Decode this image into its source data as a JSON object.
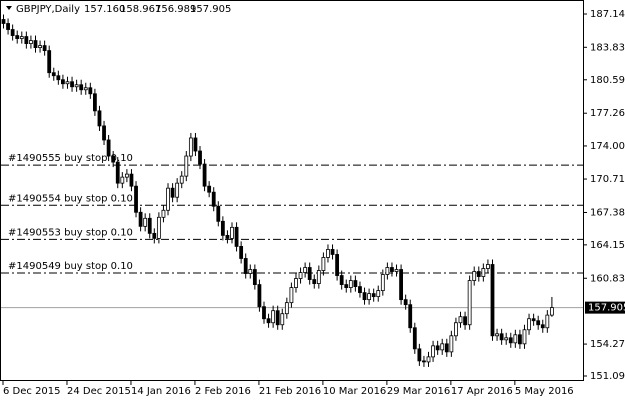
{
  "chart_data": {
    "type": "candlestick",
    "symbol": "GBPJPY,Daily",
    "info_labels": [
      "157.160",
      "158.967",
      "156.989",
      "157.905"
    ],
    "ylim": [
      150.2,
      188.54
    ],
    "yticks": [
      187.145,
      {
        "value": 183.83,
        "label": "183.830"
      },
      180.595,
      177.265,
      174.005,
      {
        "value": 170.71,
        "label": "170.710"
      },
      {
        "value": 167.38,
        "label": "167.380"
      },
      164.155,
      {
        "value": 160.83,
        "label": "160.830"
      },
      154.275,
      151.095
    ],
    "current_price": 157.905,
    "orders": [
      {
        "label": "#1490555 buy stop 0.10",
        "price": 172.1
      },
      {
        "label": "#1490554 buy stop 0.10",
        "price": 168.1
      },
      {
        "label": "#1490553 buy stop 0.10",
        "price": 164.7
      },
      {
        "label": "#1490549 buy stop 0.10",
        "price": 161.35
      }
    ],
    "categories": [
      "6 Dec 2015",
      null,
      null,
      null,
      null,
      null,
      null,
      null,
      null,
      null,
      null,
      null,
      null,
      null,
      "24 Dec 2015",
      null,
      null,
      null,
      null,
      null,
      null,
      null,
      null,
      null,
      null,
      null,
      null,
      null,
      "14 Jan 2016",
      null,
      null,
      null,
      null,
      null,
      null,
      null,
      null,
      null,
      null,
      null,
      null,
      null,
      "2 Feb 2016",
      null,
      null,
      null,
      null,
      null,
      null,
      null,
      null,
      null,
      null,
      null,
      null,
      null,
      "21 Feb 2016",
      null,
      null,
      null,
      null,
      null,
      null,
      null,
      null,
      null,
      null,
      null,
      null,
      null,
      "10 Mar 2016",
      null,
      null,
      null,
      null,
      null,
      null,
      null,
      null,
      null,
      null,
      null,
      null,
      null,
      "29 Mar 2016",
      null,
      null,
      null,
      null,
      null,
      null,
      null,
      null,
      null,
      null,
      null,
      null,
      null,
      "17 Apr 2016",
      null,
      null,
      null,
      null,
      null,
      null,
      null,
      null,
      null,
      null,
      null,
      null,
      null,
      "5 May 2016",
      null,
      null,
      null,
      null,
      null,
      null,
      null,
      null
    ],
    "ohlc": [
      [
        186.6,
        187.1,
        185.7,
        186.2
      ],
      [
        186.2,
        186.7,
        185.1,
        185.6
      ],
      [
        185.6,
        186.1,
        184.5,
        185.0
      ],
      [
        185.0,
        185.5,
        184.2,
        184.7
      ],
      [
        184.7,
        185.4,
        184.2,
        184.9
      ],
      [
        184.9,
        185.4,
        183.7,
        184.2
      ],
      [
        184.2,
        185.0,
        183.7,
        184.5
      ],
      [
        184.5,
        185.0,
        183.3,
        183.8
      ],
      [
        183.8,
        184.5,
        183.3,
        184.0
      ],
      [
        184.0,
        184.5,
        183.0,
        183.5
      ],
      [
        183.5,
        184.0,
        180.8,
        181.3
      ],
      [
        181.3,
        181.8,
        180.5,
        181.0
      ],
      [
        181.0,
        181.5,
        180.1,
        180.6
      ],
      [
        180.6,
        181.1,
        179.7,
        180.2
      ],
      [
        180.2,
        180.9,
        179.7,
        180.4
      ],
      [
        180.4,
        180.9,
        179.4,
        179.9
      ],
      [
        179.9,
        180.6,
        179.4,
        180.1
      ],
      [
        180.1,
        180.6,
        179.1,
        179.6
      ],
      [
        179.6,
        180.3,
        179.1,
        179.8
      ],
      [
        179.8,
        180.3,
        178.7,
        179.2
      ],
      [
        179.2,
        179.7,
        177.0,
        177.5
      ],
      [
        177.5,
        178.0,
        175.5,
        176.0
      ],
      [
        176.0,
        176.5,
        174.1,
        174.6
      ],
      [
        174.6,
        175.1,
        172.5,
        173.0
      ],
      [
        173.0,
        173.5,
        171.9,
        172.4
      ],
      [
        172.4,
        172.9,
        169.8,
        170.3
      ],
      [
        170.3,
        171.4,
        169.8,
        170.9
      ],
      [
        170.9,
        171.7,
        170.4,
        171.2
      ],
      [
        171.2,
        171.7,
        169.5,
        170.0
      ],
      [
        170.0,
        170.5,
        166.9,
        167.4
      ],
      [
        167.4,
        167.9,
        165.5,
        166.0
      ],
      [
        166.0,
        167.3,
        165.5,
        166.8
      ],
      [
        166.8,
        167.3,
        164.8,
        165.3
      ],
      [
        165.3,
        165.8,
        164.3,
        164.8
      ],
      [
        164.8,
        167.4,
        164.3,
        166.9
      ],
      [
        166.9,
        168.1,
        166.4,
        167.6
      ],
      [
        167.6,
        170.3,
        167.1,
        169.8
      ],
      [
        169.8,
        170.3,
        168.4,
        168.9
      ],
      [
        168.9,
        170.8,
        168.4,
        170.3
      ],
      [
        170.3,
        171.5,
        169.8,
        171.0
      ],
      [
        171.0,
        173.5,
        170.5,
        173.0
      ],
      [
        173.0,
        175.3,
        172.5,
        174.8
      ],
      [
        174.8,
        175.3,
        173.0,
        173.5
      ],
      [
        173.5,
        174.0,
        171.7,
        172.2
      ],
      [
        172.2,
        172.7,
        169.5,
        170.0
      ],
      [
        170.0,
        170.5,
        168.9,
        169.4
      ],
      [
        169.4,
        169.9,
        167.5,
        168.0
      ],
      [
        168.0,
        168.5,
        166.0,
        166.5
      ],
      [
        166.5,
        167.0,
        164.6,
        165.1
      ],
      [
        165.1,
        165.6,
        164.3,
        164.8
      ],
      [
        164.8,
        166.4,
        164.3,
        165.9
      ],
      [
        165.9,
        166.4,
        163.5,
        164.0
      ],
      [
        164.0,
        164.5,
        162.3,
        162.8
      ],
      [
        162.8,
        163.3,
        160.8,
        161.3
      ],
      [
        161.3,
        162.2,
        160.8,
        161.7
      ],
      [
        161.7,
        162.2,
        159.7,
        160.2
      ],
      [
        160.2,
        160.7,
        157.5,
        158.0
      ],
      [
        158.0,
        158.5,
        156.3,
        156.8
      ],
      [
        156.8,
        157.3,
        155.9,
        156.4
      ],
      [
        156.4,
        158.1,
        155.9,
        157.6
      ],
      [
        157.6,
        158.1,
        155.7,
        156.2
      ],
      [
        156.2,
        157.8,
        155.7,
        157.3
      ],
      [
        157.3,
        158.9,
        156.8,
        158.4
      ],
      [
        158.4,
        160.4,
        157.9,
        159.9
      ],
      [
        159.9,
        161.3,
        159.4,
        160.8
      ],
      [
        160.8,
        161.9,
        160.3,
        161.4
      ],
      [
        161.4,
        162.4,
        160.9,
        161.9
      ],
      [
        161.9,
        162.4,
        160.2,
        160.7
      ],
      [
        160.7,
        161.2,
        159.8,
        160.3
      ],
      [
        160.3,
        162.1,
        159.8,
        161.6
      ],
      [
        161.6,
        163.4,
        161.1,
        162.9
      ],
      [
        162.9,
        164.2,
        162.4,
        163.7
      ],
      [
        163.7,
        164.2,
        162.7,
        163.2
      ],
      [
        163.2,
        163.7,
        160.6,
        161.1
      ],
      [
        161.1,
        161.6,
        159.7,
        160.2
      ],
      [
        160.2,
        160.7,
        159.4,
        159.9
      ],
      [
        159.9,
        161.1,
        159.4,
        160.6
      ],
      [
        160.6,
        161.1,
        159.5,
        160.0
      ],
      [
        160.0,
        160.5,
        158.9,
        159.4
      ],
      [
        159.4,
        159.9,
        158.2,
        158.7
      ],
      [
        158.7,
        159.8,
        158.2,
        159.3
      ],
      [
        159.3,
        159.8,
        158.5,
        159.0
      ],
      [
        159.0,
        160.1,
        158.5,
        159.6
      ],
      [
        159.6,
        161.7,
        159.1,
        161.2
      ],
      [
        161.2,
        162.4,
        160.7,
        161.9
      ],
      [
        161.9,
        162.4,
        161.0,
        161.5
      ],
      [
        161.5,
        162.2,
        161.0,
        161.7
      ],
      [
        161.7,
        162.2,
        158.2,
        158.7
      ],
      [
        158.7,
        159.2,
        157.7,
        158.2
      ],
      [
        158.2,
        158.7,
        155.4,
        155.9
      ],
      [
        155.9,
        156.4,
        153.3,
        153.8
      ],
      [
        153.8,
        154.3,
        152.1,
        152.6
      ],
      [
        152.6,
        153.1,
        152.0,
        152.5
      ],
      [
        152.5,
        153.5,
        152.0,
        153.0
      ],
      [
        153.0,
        154.6,
        152.5,
        154.1
      ],
      [
        154.1,
        154.6,
        153.2,
        153.7
      ],
      [
        153.7,
        154.8,
        153.2,
        154.3
      ],
      [
        154.3,
        154.8,
        153.0,
        153.5
      ],
      [
        153.5,
        155.6,
        153.0,
        155.1
      ],
      [
        155.1,
        156.9,
        154.6,
        156.4
      ],
      [
        156.4,
        157.5,
        155.9,
        157.0
      ],
      [
        157.0,
        157.5,
        155.7,
        156.2
      ],
      [
        156.2,
        161.1,
        155.7,
        160.6
      ],
      [
        160.6,
        162.0,
        160.1,
        161.5
      ],
      [
        161.5,
        162.0,
        160.5,
        161.0
      ],
      [
        161.0,
        162.3,
        160.5,
        161.8
      ],
      [
        161.8,
        162.7,
        161.3,
        162.2
      ],
      [
        162.2,
        162.7,
        154.6,
        155.1
      ],
      [
        155.1,
        155.8,
        154.6,
        155.3
      ],
      [
        155.3,
        155.8,
        154.2,
        154.7
      ],
      [
        154.7,
        155.4,
        154.2,
        154.9
      ],
      [
        154.9,
        155.4,
        153.9,
        154.4
      ],
      [
        154.4,
        155.7,
        153.9,
        155.2
      ],
      [
        155.2,
        155.7,
        153.8,
        154.3
      ],
      [
        154.3,
        156.2,
        153.8,
        155.7
      ],
      [
        155.7,
        157.3,
        155.2,
        156.8
      ],
      [
        156.8,
        157.3,
        156.1,
        156.6
      ],
      [
        156.6,
        157.1,
        155.7,
        156.2
      ],
      [
        156.2,
        156.7,
        155.4,
        155.9
      ],
      [
        155.9,
        157.66,
        155.4,
        157.16
      ],
      [
        157.16,
        158.967,
        156.989,
        157.905
      ]
    ]
  }
}
